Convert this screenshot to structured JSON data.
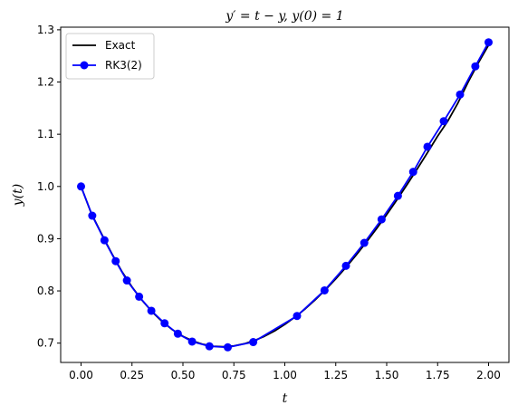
{
  "chart_data": {
    "type": "line",
    "title": "y′ = t − y, y(0) = 1",
    "xlabel": "t",
    "ylabel": "y(t)",
    "xlim": [
      -0.1,
      2.1
    ],
    "ylim": [
      0.663,
      1.305
    ],
    "xticks": [
      "0.00",
      "0.25",
      "0.50",
      "0.75",
      "1.00",
      "1.25",
      "1.50",
      "1.75",
      "2.00"
    ],
    "yticks": [
      "0.7",
      "0.8",
      "0.9",
      "1.0",
      "1.1",
      "1.2",
      "1.3"
    ],
    "grid": false,
    "legend_position": "upper-left",
    "series": [
      {
        "name": "Exact",
        "color": "#000000",
        "marker": "none",
        "x": [
          0,
          0.05,
          0.1,
          0.15,
          0.2,
          0.25,
          0.3,
          0.35,
          0.4,
          0.45,
          0.5,
          0.55,
          0.6,
          0.65,
          0.7,
          0.75,
          0.8,
          0.85,
          0.9,
          0.95,
          1.0,
          1.05,
          1.1,
          1.15,
          1.2,
          1.25,
          1.3,
          1.35,
          1.4,
          1.45,
          1.5,
          1.55,
          1.6,
          1.65,
          1.7,
          1.75,
          1.8,
          1.85,
          1.9,
          1.95,
          2.0
        ],
        "y": [
          1.0,
          0.9488,
          0.9097,
          0.8722,
          0.8375,
          0.8076,
          0.7817,
          0.7594,
          0.7406,
          0.7252,
          0.7131,
          0.7039,
          0.6976,
          0.694,
          0.6932,
          0.6947,
          0.6987,
          0.7048,
          0.7131,
          0.7234,
          0.7358,
          0.7499,
          0.7656,
          0.7833,
          0.8024,
          0.823,
          0.8452,
          0.8686,
          0.8933,
          0.9191,
          0.9461,
          0.9742,
          1.0035,
          1.0336,
          1.0647,
          1.0964,
          1.1253,
          1.1601,
          1.2,
          1.2367,
          1.2707
        ]
      },
      {
        "name": "RK3(2)",
        "color": "#0000ff",
        "marker": "circle",
        "x": [
          0.0,
          0.055,
          0.115,
          0.17,
          0.225,
          0.285,
          0.345,
          0.41,
          0.475,
          0.545,
          0.63,
          0.72,
          0.845,
          1.06,
          1.195,
          1.3,
          1.39,
          1.475,
          1.555,
          1.63,
          1.7,
          1.78,
          1.86,
          1.935,
          2.0
        ],
        "y": [
          1.0,
          0.944,
          0.897,
          0.857,
          0.82,
          0.789,
          0.762,
          0.738,
          0.718,
          0.703,
          0.694,
          0.692,
          0.702,
          0.752,
          0.801,
          0.848,
          0.892,
          0.937,
          0.982,
          1.028,
          1.076,
          1.125,
          1.176,
          1.23,
          1.276
        ]
      }
    ]
  }
}
